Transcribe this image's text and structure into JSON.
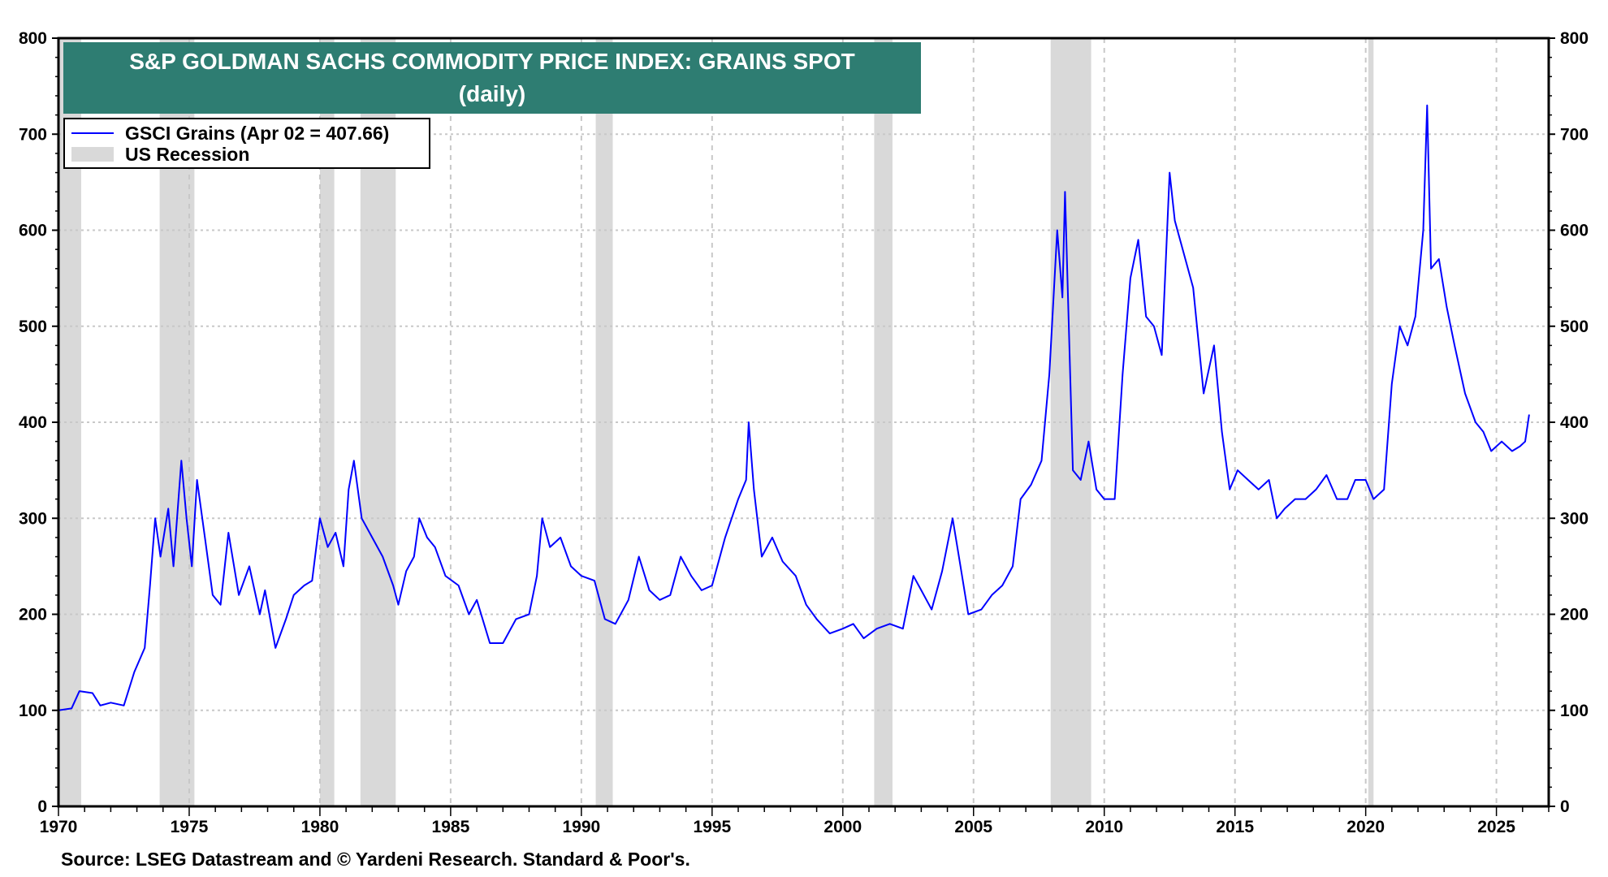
{
  "chart_data": {
    "type": "line",
    "title": "S&P GOLDMAN SACHS COMMODITY PRICE INDEX: GRAINS SPOT",
    "subtitle": "(daily)",
    "xlim": [
      1970,
      2027
    ],
    "ylim": [
      0,
      800
    ],
    "x_ticks": [
      "1970",
      "1975",
      "1980",
      "1985",
      "1990",
      "1995",
      "2000",
      "2005",
      "2010",
      "2015",
      "2020",
      "2025"
    ],
    "y_ticks": [
      "0",
      "100",
      "200",
      "300",
      "400",
      "500",
      "600",
      "700",
      "800"
    ],
    "grid": true,
    "legend_placement": "top-left",
    "legend": [
      {
        "label": "GSCI Grains (Apr 02 = 407.66)",
        "color": "#0000FF",
        "kind": "line"
      },
      {
        "label": "US Recession",
        "color": "#D9D9D9",
        "kind": "band"
      }
    ],
    "recessions": [
      [
        1969.95,
        1970.87
      ],
      [
        1973.87,
        1975.2
      ],
      [
        1980.0,
        1980.55
      ],
      [
        1981.55,
        1982.9
      ],
      [
        1990.55,
        1991.2
      ],
      [
        2001.2,
        2001.9
      ],
      [
        2007.95,
        2009.5
      ],
      [
        2020.1,
        2020.3
      ]
    ],
    "series": [
      {
        "name": "GSCI Grains",
        "color": "#0000FF",
        "x": [
          1970.0,
          1970.5,
          1970.8,
          1971.3,
          1971.6,
          1972.0,
          1972.5,
          1972.9,
          1973.3,
          1973.5,
          1973.7,
          1973.9,
          1974.2,
          1974.4,
          1974.7,
          1974.9,
          1975.1,
          1975.3,
          1975.6,
          1975.9,
          1976.2,
          1976.5,
          1976.9,
          1977.3,
          1977.7,
          1977.9,
          1978.3,
          1978.7,
          1979.0,
          1979.4,
          1979.7,
          1980.0,
          1980.3,
          1980.6,
          1980.9,
          1981.1,
          1981.3,
          1981.6,
          1982.0,
          1982.4,
          1982.8,
          1983.0,
          1983.3,
          1983.6,
          1983.8,
          1984.1,
          1984.4,
          1984.8,
          1985.3,
          1985.7,
          1986.0,
          1986.5,
          1987.0,
          1987.5,
          1988.0,
          1988.3,
          1988.5,
          1988.8,
          1989.2,
          1989.6,
          1990.0,
          1990.5,
          1990.9,
          1991.3,
          1991.8,
          1992.2,
          1992.6,
          1993.0,
          1993.4,
          1993.8,
          1994.2,
          1994.6,
          1995.0,
          1995.5,
          1996.0,
          1996.3,
          1996.4,
          1996.6,
          1996.9,
          1997.3,
          1997.7,
          1998.2,
          1998.6,
          1999.0,
          1999.5,
          2000.0,
          2000.4,
          2000.8,
          2001.3,
          2001.8,
          2002.3,
          2002.7,
          2003.0,
          2003.4,
          2003.8,
          2004.2,
          2004.5,
          2004.8,
          2005.3,
          2005.7,
          2006.1,
          2006.5,
          2006.8,
          2007.2,
          2007.6,
          2007.9,
          2008.2,
          2008.4,
          2008.5,
          2008.8,
          2009.1,
          2009.4,
          2009.7,
          2010.0,
          2010.4,
          2010.7,
          2011.0,
          2011.3,
          2011.6,
          2011.9,
          2012.2,
          2012.5,
          2012.7,
          2013.0,
          2013.4,
          2013.8,
          2014.2,
          2014.5,
          2014.8,
          2015.1,
          2015.5,
          2015.9,
          2016.3,
          2016.6,
          2016.9,
          2017.3,
          2017.7,
          2018.1,
          2018.5,
          2018.9,
          2019.3,
          2019.6,
          2020.0,
          2020.3,
          2020.7,
          2021.0,
          2021.3,
          2021.6,
          2021.9,
          2022.2,
          2022.35,
          2022.5,
          2022.8,
          2023.1,
          2023.4,
          2023.8,
          2024.2,
          2024.5,
          2024.8,
          2025.2,
          2025.6,
          2025.9,
          2026.1,
          2026.25
        ],
        "y": [
          100,
          102,
          120,
          118,
          105,
          108,
          105,
          140,
          165,
          230,
          300,
          260,
          310,
          250,
          360,
          300,
          250,
          340,
          280,
          220,
          210,
          285,
          220,
          250,
          200,
          225,
          165,
          195,
          220,
          230,
          235,
          300,
          270,
          285,
          250,
          330,
          360,
          300,
          280,
          260,
          230,
          210,
          245,
          260,
          300,
          280,
          270,
          240,
          230,
          200,
          215,
          170,
          170,
          195,
          200,
          240,
          300,
          270,
          280,
          250,
          240,
          235,
          195,
          190,
          215,
          260,
          225,
          215,
          220,
          260,
          240,
          225,
          230,
          280,
          320,
          340,
          400,
          330,
          260,
          280,
          255,
          240,
          210,
          195,
          180,
          185,
          190,
          175,
          185,
          190,
          185,
          240,
          225,
          205,
          245,
          300,
          250,
          200,
          205,
          220,
          230,
          250,
          320,
          335,
          360,
          450,
          600,
          530,
          640,
          350,
          340,
          380,
          330,
          320,
          320,
          450,
          550,
          590,
          510,
          500,
          470,
          660,
          610,
          580,
          540,
          430,
          480,
          390,
          330,
          350,
          340,
          330,
          340,
          300,
          310,
          320,
          320,
          330,
          345,
          320,
          320,
          340,
          340,
          320,
          330,
          440,
          500,
          480,
          510,
          600,
          730,
          560,
          570,
          520,
          480,
          430,
          400,
          390,
          370,
          380,
          370,
          375,
          380,
          408
        ]
      }
    ],
    "source": "Source: LSEG Datastream and © Yardeni Research. Standard & Poor's."
  }
}
